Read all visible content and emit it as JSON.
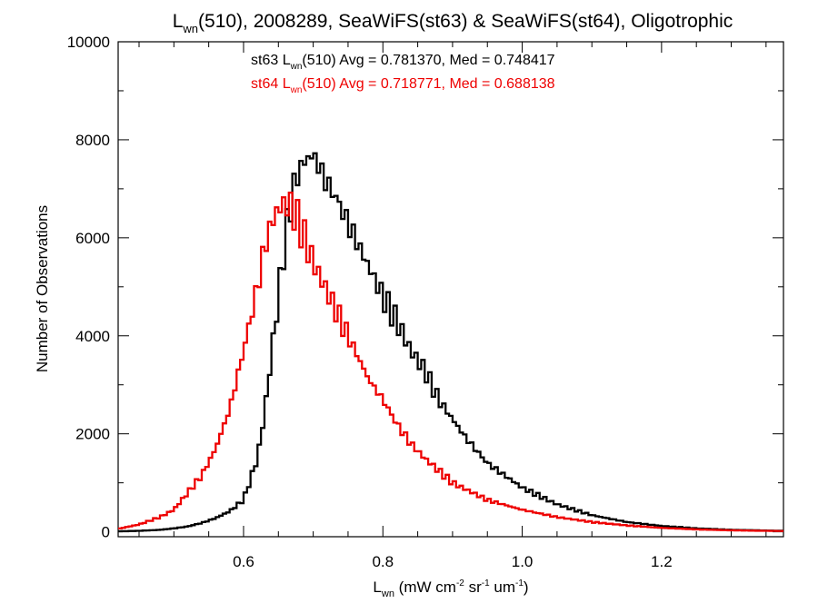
{
  "chart_data": {
    "type": "line",
    "title": {
      "pre": "L",
      "sub": "wn",
      "post": "(510), 2008289, SeaWiFS(st63) & SeaWiFS(st64), Oligotrophic"
    },
    "xlabel": {
      "pre": "L",
      "sub": "wn",
      "mid1": " (mW cm",
      "sup1": "-2",
      "mid2": " sr",
      "sup2": "-1",
      "mid3": " um",
      "sup3": "-1",
      "post": ")"
    },
    "ylabel": "Number of Observations",
    "xlim": [
      0.42,
      1.375
    ],
    "ylim": [
      -100,
      10000
    ],
    "xticks": [
      0.6,
      0.8,
      1.0,
      1.2
    ],
    "xtick_labels": [
      "0.6",
      "0.8",
      "1.0",
      "1.2"
    ],
    "yticks": [
      0,
      2000,
      4000,
      6000,
      8000,
      10000
    ],
    "ytick_labels": [
      "0",
      "2000",
      "4000",
      "6000",
      "8000",
      "10000"
    ],
    "annotations": [
      {
        "pre": "st63 L",
        "sub": "wn",
        "post": "(510) Avg = 0.781370, Med = 0.748417",
        "color": "#000000"
      },
      {
        "pre": "st64 L",
        "sub": "wn",
        "post": "(510) Avg = 0.718771, Med = 0.688138",
        "color": "#ee0000"
      }
    ],
    "series": [
      {
        "color": "#000000",
        "x": [
          0.42,
          0.45,
          0.48,
          0.5,
          0.52,
          0.54,
          0.56,
          0.58,
          0.6,
          0.62,
          0.63,
          0.64,
          0.65,
          0.66,
          0.67,
          0.68,
          0.69,
          0.7,
          0.71,
          0.72,
          0.73,
          0.74,
          0.75,
          0.76,
          0.77,
          0.78,
          0.8,
          0.82,
          0.84,
          0.86,
          0.88,
          0.9,
          0.92,
          0.95,
          1.0,
          1.05,
          1.1,
          1.15,
          1.2,
          1.25,
          1.3,
          1.375
        ],
        "y": [
          10,
          20,
          40,
          70,
          110,
          180,
          280,
          420,
          650,
          1500,
          2400,
          3600,
          4800,
          6000,
          6900,
          7400,
          7600,
          7700,
          7400,
          7100,
          6900,
          6600,
          6300,
          6000,
          5700,
          5400,
          4800,
          4300,
          3700,
          3300,
          2700,
          2300,
          1900,
          1400,
          900,
          560,
          340,
          200,
          120,
          70,
          40,
          20
        ]
      },
      {
        "color": "#ee0000",
        "x": [
          0.42,
          0.45,
          0.48,
          0.5,
          0.52,
          0.54,
          0.56,
          0.58,
          0.6,
          0.62,
          0.63,
          0.64,
          0.65,
          0.66,
          0.67,
          0.68,
          0.69,
          0.7,
          0.71,
          0.72,
          0.73,
          0.74,
          0.75,
          0.76,
          0.78,
          0.8,
          0.82,
          0.84,
          0.86,
          0.88,
          0.9,
          0.95,
          1.0,
          1.05,
          1.1,
          1.15,
          1.2,
          1.25,
          1.3,
          1.375
        ],
        "y": [
          60,
          150,
          300,
          450,
          800,
          1150,
          1700,
          2500,
          3700,
          5000,
          5800,
          6300,
          6600,
          6700,
          6600,
          6300,
          5900,
          5500,
          5200,
          4900,
          4600,
          4300,
          4000,
          3700,
          3100,
          2700,
          2200,
          1800,
          1500,
          1250,
          1000,
          650,
          450,
          300,
          200,
          130,
          80,
          50,
          30,
          15
        ]
      }
    ]
  }
}
